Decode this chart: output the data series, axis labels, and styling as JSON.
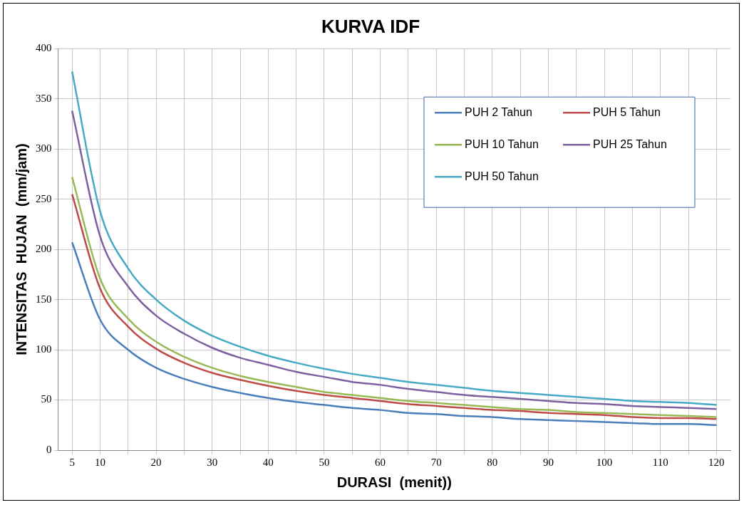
{
  "chart_data": {
    "type": "line",
    "title": "KURVA IDF",
    "xlabel": "DURASI  (menit))",
    "ylabel": "INTENSITAS  HUJAN  (mm/jam)",
    "x": [
      5,
      10,
      15,
      20,
      25,
      30,
      35,
      40,
      45,
      50,
      55,
      60,
      65,
      70,
      75,
      80,
      85,
      90,
      95,
      100,
      105,
      110,
      115,
      120
    ],
    "xlim": [
      2.5,
      122.5
    ],
    "xticks": [
      5,
      10,
      {
        "value": 15,
        "label": null
      },
      20,
      {
        "value": 25,
        "label": null
      },
      30,
      {
        "value": 35,
        "label": null
      },
      40,
      {
        "value": 45,
        "label": null
      },
      50,
      {
        "value": 55,
        "label": null
      },
      60,
      {
        "value": 65,
        "label": null
      },
      70,
      {
        "value": 75,
        "label": null
      },
      80,
      {
        "value": 85,
        "label": null
      },
      90,
      {
        "value": 95,
        "label": null
      },
      100,
      {
        "value": 105,
        "label": null
      },
      110,
      {
        "value": 115,
        "label": null
      },
      120
    ],
    "ylim": [
      0,
      400
    ],
    "yticks": [
      0,
      50,
      100,
      150,
      200,
      250,
      300,
      350,
      400
    ],
    "grid": true,
    "legend": "top right",
    "marker": "none",
    "line_style": "solid",
    "series": [
      {
        "name": "PUH 2 Tahun",
        "color": "#4a7ebb",
        "values": [
          207,
          130,
          100,
          82,
          71,
          63,
          57,
          52,
          48,
          45,
          42,
          40,
          37,
          36,
          34,
          33,
          31,
          30,
          29,
          28,
          27,
          26,
          26,
          25
        ]
      },
      {
        "name": "PUH 5 Tahun",
        "color": "#be4b48",
        "values": [
          255,
          161,
          123,
          101,
          87,
          77,
          70,
          64,
          59,
          55,
          52,
          49,
          46,
          44,
          42,
          40,
          39,
          37,
          36,
          35,
          33,
          32,
          32,
          31
        ]
      },
      {
        "name": "PUH 10 Tahun",
        "color": "#98b954",
        "values": [
          272,
          171,
          131,
          108,
          93,
          82,
          74,
          68,
          63,
          58,
          55,
          52,
          49,
          47,
          45,
          43,
          41,
          40,
          38,
          37,
          36,
          35,
          34,
          33
        ]
      },
      {
        "name": "PUH 25 Tahun",
        "color": "#7d60a0",
        "values": [
          338,
          213,
          163,
          134,
          116,
          102,
          92,
          85,
          78,
          73,
          68,
          65,
          61,
          58,
          55,
          53,
          51,
          49,
          47,
          46,
          44,
          43,
          42,
          41
        ]
      },
      {
        "name": "PUH 50 Tahun",
        "color": "#46aac5",
        "values": [
          377,
          238,
          181,
          150,
          129,
          114,
          103,
          94,
          87,
          81,
          76,
          72,
          68,
          65,
          62,
          59,
          57,
          55,
          53,
          51,
          49,
          48,
          47,
          45
        ]
      }
    ]
  }
}
